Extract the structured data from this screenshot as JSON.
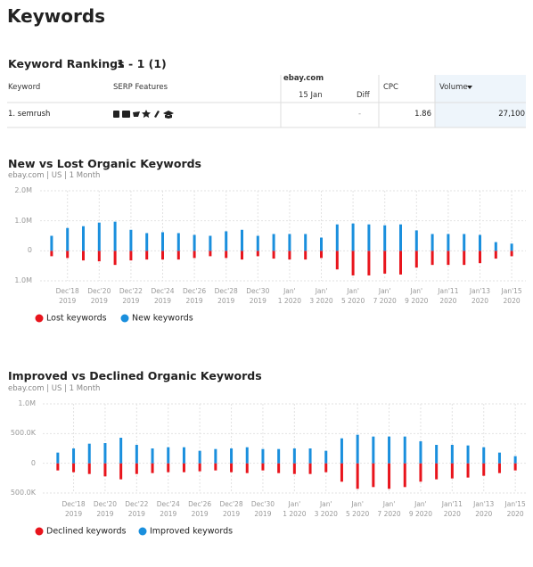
{
  "header": {
    "title": "Keywords"
  },
  "table": {
    "title": "Keyword Rankings",
    "range": "1 - 1 (1)",
    "columns": {
      "keyword": "Keyword",
      "serp": "SERP Features",
      "domain": "ebay.com",
      "date": "15 Jan",
      "diff": "Diff",
      "cpc": "CPC",
      "volume": "Volume"
    },
    "rows": [
      {
        "keyword": "1. semrush",
        "diff": "-",
        "cpc": "1.86",
        "volume": "27,100"
      }
    ]
  },
  "chart_data": [
    {
      "type": "bar",
      "title": "New vs Lost Organic Keywords",
      "subtitle": "ebay.com | US | 1 Month",
      "categories": [
        null,
        "Dec'18\n2019",
        null,
        "Dec'20\n2019",
        null,
        "Dec'22\n2019",
        null,
        "Dec'24\n2019",
        null,
        "Dec'26\n2019",
        null,
        "Dec'28\n2019",
        null,
        "Dec'30\n2019",
        null,
        "Jan'\n1 2020",
        null,
        "Jan'\n3 2020",
        null,
        "Jan'\n5 2020",
        null,
        "Jan'\n7 2020",
        null,
        "Jan'\n9 2020",
        null,
        "Jan'11\n2020",
        null,
        "Jan'13\n2020",
        null,
        "Jan'15\n2020"
      ],
      "series": [
        {
          "name": "Lost keywords",
          "color": "#e8141c",
          "values": [
            -180000,
            -240000,
            -320000,
            -350000,
            -470000,
            -320000,
            -290000,
            -290000,
            -290000,
            -240000,
            -180000,
            -240000,
            -290000,
            -180000,
            -260000,
            -290000,
            -290000,
            -240000,
            -620000,
            -820000,
            -820000,
            -760000,
            -790000,
            -560000,
            -470000,
            -470000,
            -470000,
            -410000,
            -260000,
            -180000
          ]
        },
        {
          "name": "New keywords",
          "color": "#1a8fdd",
          "values": [
            500000,
            760000,
            820000,
            940000,
            970000,
            700000,
            590000,
            620000,
            590000,
            530000,
            500000,
            650000,
            700000,
            500000,
            560000,
            560000,
            560000,
            440000,
            880000,
            910000,
            880000,
            850000,
            880000,
            680000,
            560000,
            560000,
            560000,
            530000,
            290000,
            240000
          ]
        }
      ],
      "ylim": [
        -1000000,
        2000000
      ],
      "yticks": [
        {
          "value": 2000000,
          "label": "2.0M"
        },
        {
          "value": 1000000,
          "label": "1.0M"
        },
        0,
        {
          "value": -1000000,
          "label": "1.0M"
        }
      ],
      "grid": true
    },
    {
      "type": "bar",
      "title": "Improved vs Declined Organic Keywords",
      "subtitle": "ebay.com | US | 1 Month",
      "categories": [
        null,
        "Dec'18\n2019",
        null,
        "Dec'20\n2019",
        null,
        "Dec'22\n2019",
        null,
        "Dec'24\n2019",
        null,
        "Dec'26\n2019",
        null,
        "Dec'28\n2019",
        null,
        "Dec'30\n2019",
        null,
        "Jan'\n1 2020",
        null,
        "Jan'\n3 2020",
        null,
        "Jan'\n5 2020",
        null,
        "Jan'\n7 2020",
        null,
        "Jan'\n9 2020",
        null,
        "Jan'11\n2020",
        null,
        "Jan'13\n2020",
        null,
        "Jan'15\n2020"
      ],
      "series": [
        {
          "name": "Declined keywords",
          "color": "#e8141c",
          "values": [
            -120000,
            -150000,
            -180000,
            -220000,
            -270000,
            -180000,
            -165000,
            -150000,
            -150000,
            -135000,
            -120000,
            -150000,
            -165000,
            -120000,
            -165000,
            -180000,
            -180000,
            -150000,
            -310000,
            -430000,
            -400000,
            -430000,
            -400000,
            -310000,
            -270000,
            -255000,
            -240000,
            -210000,
            -165000,
            -120000
          ]
        },
        {
          "name": "Improved keywords",
          "color": "#1a8fdd",
          "values": [
            180000,
            250000,
            330000,
            340000,
            430000,
            310000,
            250000,
            270000,
            270000,
            210000,
            240000,
            250000,
            270000,
            240000,
            240000,
            250000,
            250000,
            210000,
            420000,
            480000,
            450000,
            450000,
            450000,
            370000,
            310000,
            310000,
            300000,
            270000,
            180000,
            120000
          ]
        }
      ],
      "ylim": [
        -500000,
        1000000
      ],
      "yticks": [
        {
          "value": 1000000,
          "label": "1.0M"
        },
        {
          "value": 500000,
          "label": "500.0K"
        },
        0,
        {
          "value": -500000,
          "label": "500.0K"
        }
      ],
      "grid": true
    }
  ]
}
